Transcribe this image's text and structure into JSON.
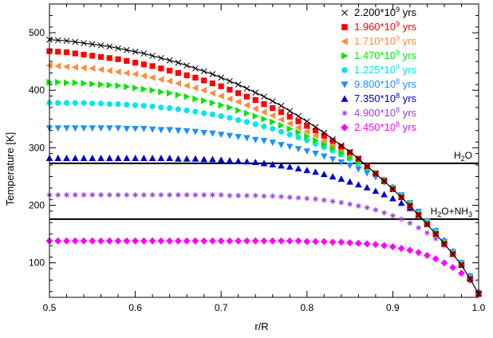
{
  "chart_data": {
    "type": "scatter",
    "xlabel": "r/R",
    "ylabel": "Temperature [K]",
    "xlim": [
      0.5,
      1.0
    ],
    "ylim": [
      40,
      550
    ],
    "xticks": [
      "0.5",
      "0.6",
      "0.7",
      "0.8",
      "0.9",
      "1.0"
    ],
    "yticks": [
      "100",
      "200",
      "300",
      "400",
      "500"
    ],
    "grid": false,
    "legend_position": "top-right",
    "x": [
      0.5,
      0.51,
      0.52,
      0.53,
      0.54,
      0.55,
      0.56,
      0.57,
      0.58,
      0.59,
      0.6,
      0.61,
      0.62,
      0.63,
      0.64,
      0.65,
      0.66,
      0.67,
      0.68,
      0.69,
      0.7,
      0.71,
      0.72,
      0.73,
      0.74,
      0.75,
      0.76,
      0.77,
      0.78,
      0.79,
      0.8,
      0.81,
      0.82,
      0.83,
      0.84,
      0.85,
      0.86,
      0.87,
      0.88,
      0.89,
      0.9,
      0.91,
      0.92,
      0.93,
      0.94,
      0.95,
      0.96,
      0.97,
      0.98,
      0.99,
      1.0
    ],
    "series": [
      {
        "name": "2.200*10^9 yrs",
        "label_base": "2.200*10",
        "label_exp": "9",
        "label_unit": " yrs",
        "marker": "x",
        "color": "#000000",
        "values": [
          488,
          487,
          486,
          484,
          482,
          480,
          478,
          476,
          473,
          470,
          467,
          464,
          460,
          456,
          452,
          448,
          443,
          438,
          433,
          428,
          422,
          416,
          410,
          403,
          396,
          389,
          381,
          373,
          364,
          355,
          346,
          336,
          326,
          315,
          304,
          293,
          281,
          268,
          255,
          242,
          228,
          214,
          199,
          183,
          167,
          150,
          133,
          115,
          96,
          72,
          46
        ]
      },
      {
        "name": "1.960*10^9 yrs",
        "label_base": "1.960*10",
        "label_exp": "9",
        "label_unit": " yrs",
        "marker": "square",
        "color": "#ff0000",
        "values": [
          468,
          467,
          466,
          464,
          462,
          460,
          458,
          456,
          454,
          451,
          448,
          445,
          442,
          438,
          434,
          430,
          426,
          422,
          417,
          412,
          407,
          401,
          395,
          389,
          383,
          376,
          369,
          362,
          354,
          346,
          338,
          330,
          321,
          312,
          302,
          292,
          281,
          268,
          255,
          242,
          228,
          214,
          199,
          183,
          167,
          150,
          133,
          115,
          96,
          72,
          46
        ]
      },
      {
        "name": "1.710*10^9 yrs",
        "label_base": "1.710*10",
        "label_exp": "9",
        "label_unit": " yrs",
        "marker": "triangle-left",
        "color": "#ff8c3c",
        "values": [
          443,
          442,
          441,
          440,
          439,
          438,
          436,
          434,
          432,
          430,
          428,
          425,
          422,
          419,
          416,
          412,
          408,
          404,
          400,
          395,
          390,
          385,
          380,
          374,
          368,
          362,
          356,
          349,
          342,
          335,
          328,
          321,
          313,
          305,
          297,
          288,
          279,
          268,
          256,
          243,
          229,
          215,
          200,
          184,
          168,
          151,
          134,
          116,
          97,
          73,
          46
        ]
      },
      {
        "name": "1.470*10^9 yrs",
        "label_base": "1.470*10",
        "label_exp": "9",
        "label_unit": " yrs",
        "marker": "triangle-right",
        "color": "#00e600",
        "values": [
          414,
          414,
          413,
          413,
          412,
          411,
          410,
          409,
          408,
          406,
          404,
          402,
          400,
          397,
          395,
          392,
          389,
          385,
          382,
          378,
          374,
          370,
          365,
          360,
          355,
          350,
          345,
          339,
          333,
          327,
          320,
          313,
          306,
          299,
          291,
          283,
          275,
          266,
          256,
          244,
          230,
          216,
          201,
          185,
          169,
          152,
          135,
          117,
          98,
          74,
          47
        ]
      },
      {
        "name": "1.225*10^9 yrs",
        "label_base": "1.225*10",
        "label_exp": "9",
        "label_unit": " yrs",
        "marker": "circle",
        "color": "#00e5ee",
        "values": [
          378,
          378,
          378,
          378,
          378,
          377,
          377,
          376,
          376,
          375,
          374,
          373,
          372,
          370,
          369,
          367,
          365,
          363,
          360,
          358,
          355,
          352,
          348,
          345,
          341,
          337,
          333,
          328,
          323,
          318,
          313,
          307,
          301,
          295,
          288,
          281,
          273,
          265,
          256,
          245,
          232,
          218,
          203,
          187,
          171,
          154,
          136,
          118,
          99,
          75,
          47
        ]
      },
      {
        "name": "9.800*10^8 yrs",
        "label_base": "9.800*10",
        "label_exp": "8",
        "label_unit": " yrs",
        "marker": "triangle-down",
        "color": "#1e90ff",
        "values": [
          334,
          334,
          334,
          334,
          334,
          334,
          334,
          334,
          334,
          333,
          333,
          333,
          332,
          331,
          331,
          330,
          329,
          328,
          326,
          325,
          323,
          321,
          319,
          317,
          314,
          312,
          309,
          305,
          302,
          298,
          294,
          290,
          285,
          280,
          275,
          269,
          263,
          256,
          249,
          240,
          230,
          218,
          204,
          189,
          172,
          155,
          137,
          119,
          100,
          76,
          47
        ]
      },
      {
        "name": "7.350*10^8 yrs",
        "label_base": "7.350*10",
        "label_exp": "8",
        "label_unit": " yrs",
        "marker": "triangle-up",
        "color": "#0000cd",
        "values": [
          282,
          282,
          282,
          282,
          282,
          282,
          282,
          282,
          282,
          282,
          282,
          282,
          282,
          282,
          282,
          281,
          281,
          281,
          280,
          280,
          279,
          278,
          277,
          276,
          275,
          273,
          271,
          269,
          267,
          264,
          261,
          258,
          254,
          250,
          246,
          241,
          236,
          231,
          225,
          219,
          212,
          204,
          195,
          184,
          171,
          156,
          139,
          120,
          100,
          77,
          48
        ]
      },
      {
        "name": "4.900*10^8 yrs",
        "label_base": "4.900*10",
        "label_exp": "8",
        "label_unit": " yrs",
        "marker": "asterisk",
        "color": "#9e3fdf",
        "values": [
          218,
          218,
          218,
          218,
          218,
          218,
          218,
          218,
          218,
          218,
          218,
          218,
          218,
          218,
          218,
          218,
          218,
          218,
          218,
          218,
          218,
          217,
          217,
          217,
          217,
          216,
          216,
          215,
          214,
          213,
          212,
          211,
          209,
          207,
          205,
          202,
          199,
          196,
          192,
          187,
          182,
          176,
          169,
          161,
          152,
          142,
          130,
          116,
          99,
          78,
          49
        ]
      },
      {
        "name": "2.450*10^8 yrs",
        "label_base": "2.450*10",
        "label_exp": "8",
        "label_unit": " yrs",
        "marker": "diamond",
        "color": "#ff00ff",
        "values": [
          138,
          138,
          138,
          138,
          138,
          138,
          138,
          138,
          138,
          138,
          138,
          138,
          138,
          138,
          138,
          138,
          138,
          138,
          138,
          138,
          138,
          138,
          138,
          138,
          138,
          138,
          138,
          138,
          138,
          138,
          137,
          137,
          137,
          136,
          136,
          135,
          134,
          133,
          132,
          130,
          128,
          125,
          122,
          118,
          113,
          107,
          100,
          92,
          82,
          70,
          49
        ]
      }
    ],
    "reference_lines": [
      {
        "label": "H2O",
        "label_html": [
          "H",
          "2",
          "O",
          ""
        ],
        "y": 273
      },
      {
        "label": "H2O+NH3",
        "label_html": [
          "H",
          "2",
          "O+NH",
          "3"
        ],
        "y": 176
      }
    ]
  }
}
